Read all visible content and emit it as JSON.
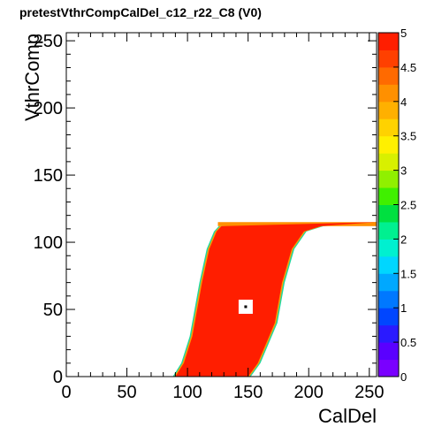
{
  "title": "pretestVthrCompCalDel_c12_r22_C8 (V0)",
  "chart_data": {
    "type": "heatmap",
    "title": "pretestVthrCompCalDel_c12_r22_C8 (V0)",
    "xlabel": "CalDel",
    "ylabel": "VthrComp",
    "xlim": [
      0,
      256
    ],
    "ylim": [
      0,
      256
    ],
    "x_ticks": [
      "0",
      "50",
      "100",
      "150",
      "200",
      "250"
    ],
    "y_ticks": [
      "0",
      "50",
      "100",
      "150",
      "200",
      "250"
    ],
    "zlim": [
      0,
      5
    ],
    "z_ticks": [
      "0",
      "0.5",
      "1",
      "1.5",
      "2",
      "2.5",
      "3",
      "3.5",
      "4",
      "4.5",
      "5"
    ],
    "grid": false,
    "colorbar": "right",
    "region": {
      "description_value": 5,
      "boundary_left": [
        [
          90,
          0
        ],
        [
          97,
          10
        ],
        [
          104,
          30
        ],
        [
          112,
          70
        ],
        [
          118,
          95
        ],
        [
          124,
          108
        ],
        [
          128,
          112
        ]
      ],
      "boundary_right": [
        [
          150,
          0
        ],
        [
          158,
          10
        ],
        [
          172,
          40
        ],
        [
          178,
          70
        ],
        [
          186,
          95
        ],
        [
          196,
          108
        ],
        [
          210,
          112
        ],
        [
          256,
          115
        ]
      ],
      "top_y": 113
    },
    "marker": {
      "x": 148,
      "y": 52,
      "value": 0
    }
  }
}
